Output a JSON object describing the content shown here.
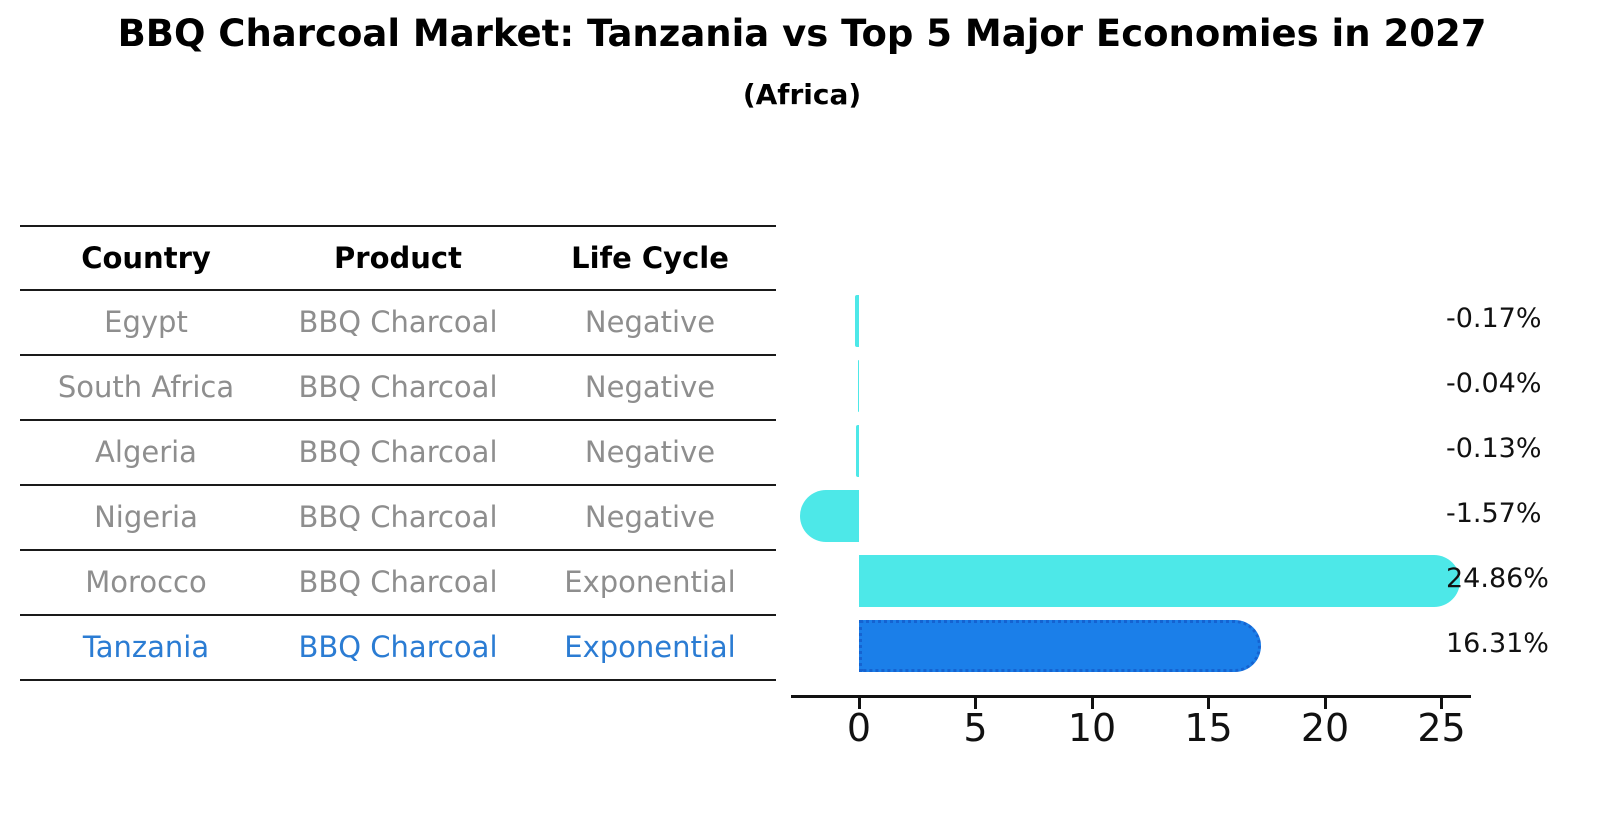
{
  "title": "BBQ Charcoal Market: Tanzania vs Top 5 Major Economies in 2027",
  "subtitle": "(Africa)",
  "table": {
    "headers": [
      "Country",
      "Product",
      "Life Cycle"
    ],
    "rows": [
      {
        "country": "Egypt",
        "product": "BBQ Charcoal",
        "life_cycle": "Negative",
        "highlight": false
      },
      {
        "country": "South Africa",
        "product": "BBQ Charcoal",
        "life_cycle": "Negative",
        "highlight": false
      },
      {
        "country": "Algeria",
        "product": "BBQ Charcoal",
        "life_cycle": "Negative",
        "highlight": false
      },
      {
        "country": "Nigeria",
        "product": "BBQ Charcoal",
        "life_cycle": "Negative",
        "highlight": false
      },
      {
        "country": "Morocco",
        "product": "BBQ Charcoal",
        "life_cycle": "Exponential",
        "highlight": false
      },
      {
        "country": "Tanzania",
        "product": "BBQ Charcoal",
        "life_cycle": "Exponential",
        "highlight": true
      }
    ]
  },
  "chart_data": {
    "type": "bar",
    "orientation": "horizontal",
    "title": "BBQ Charcoal Market: Tanzania vs Top 5 Major Economies in 2027",
    "subtitle": "(Africa)",
    "categories": [
      "Egypt",
      "South Africa",
      "Algeria",
      "Nigeria",
      "Morocco",
      "Tanzania"
    ],
    "values": [
      -0.17,
      -0.04,
      -0.13,
      -1.57,
      24.86,
      16.31
    ],
    "value_labels": [
      "-0.17%",
      "-0.04%",
      "-0.13%",
      "-1.57%",
      "24.86%",
      "16.31%"
    ],
    "x_ticks": [
      0,
      5,
      10,
      15,
      20,
      25
    ],
    "xlim": [
      -3,
      26.3
    ],
    "grid": false,
    "legend": "none",
    "highlight_index": 5,
    "colors": {
      "bar_default": "#4DE8E8",
      "bar_highlight": "#1B7FE9",
      "bar_highlight_border": "#1563D1",
      "text_default": "#8e8e8e",
      "text_highlight": "#2b7cd3",
      "axis": "#111111"
    }
  }
}
